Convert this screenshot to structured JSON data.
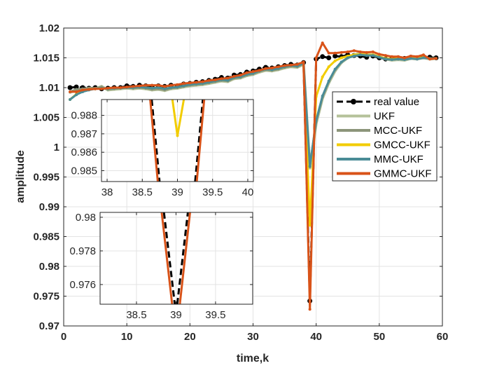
{
  "chart_data": {
    "type": "line",
    "xlabel": "time,k",
    "ylabel": "amplitude",
    "xlim": [
      0,
      60
    ],
    "ylim": [
      0.97,
      1.02
    ],
    "grid": true,
    "legend_position": "right-middle",
    "x_ticks": [
      "0",
      "10",
      "20",
      "30",
      "40",
      "50",
      "60"
    ],
    "x_tick_values": [
      0,
      10,
      20,
      30,
      40,
      50,
      60
    ],
    "y_ticks": [
      "0.97",
      "0.975",
      "0.98",
      "0.985",
      "0.99",
      "0.995",
      "1",
      "1.005",
      "1.01",
      "1.015",
      "1.02"
    ],
    "y_tick_values": [
      0.97,
      0.975,
      0.98,
      0.985,
      0.99,
      0.995,
      1,
      1.005,
      1.01,
      1.015,
      1.02
    ],
    "x": [
      1,
      2,
      3,
      4,
      5,
      6,
      7,
      8,
      9,
      10,
      11,
      12,
      13,
      14,
      15,
      16,
      17,
      18,
      19,
      20,
      21,
      22,
      23,
      24,
      25,
      26,
      27,
      28,
      29,
      30,
      31,
      32,
      33,
      34,
      35,
      36,
      37,
      38,
      39,
      40,
      41,
      42,
      43,
      44,
      45,
      46,
      47,
      48,
      49,
      50,
      51,
      52,
      53,
      54,
      55,
      56,
      57,
      58,
      59
    ],
    "series": [
      {
        "name": "real value",
        "color": "#000000",
        "dashed": true,
        "width": 3,
        "values": [
          1.01,
          1.0101,
          1.01,
          1.0099,
          1.01,
          1.0098,
          1.0099,
          1.01,
          1.01,
          1.0103,
          1.0102,
          1.0104,
          1.0103,
          1.0102,
          1.0103,
          1.0102,
          1.0104,
          1.0103,
          1.0106,
          1.0107,
          1.0109,
          1.011,
          1.0112,
          1.0114,
          1.0117,
          1.0116,
          1.0121,
          1.0122,
          1.0126,
          1.0128,
          1.0131,
          1.0134,
          1.0133,
          1.0135,
          1.0137,
          1.0139,
          1.0138,
          1.0142,
          0.9742,
          1.0148,
          1.0152,
          1.015,
          1.0153,
          1.0152,
          1.0155,
          1.0154,
          1.0153,
          1.0151,
          1.0153,
          1.015,
          1.0148,
          1.0149,
          1.015,
          1.0149,
          1.0151,
          1.015,
          1.0152,
          1.0151,
          1.015
        ]
      },
      {
        "name": "UKF",
        "color": "#b5c29a",
        "width": 4,
        "values": [
          1.0092,
          1.0096,
          1.0097,
          1.0099,
          1.0098,
          1.0102,
          1.0096,
          1.0097,
          1.0098,
          1.0099,
          1.0098,
          1.0099,
          1.0098,
          1.0096,
          1.0097,
          1.0095,
          1.0098,
          1.0099,
          1.0101,
          1.0103,
          1.0104,
          1.0105,
          1.0107,
          1.0109,
          1.0111,
          1.011,
          1.0115,
          1.0116,
          1.012,
          1.0122,
          1.0126,
          1.0129,
          1.0128,
          1.013,
          1.0133,
          1.0135,
          1.0134,
          1.0139,
          0.9965,
          1.004,
          1.0082,
          1.0108,
          1.0128,
          1.0142,
          1.015,
          1.0155,
          1.0157,
          1.0155,
          1.0155,
          1.0152,
          1.0148,
          1.0146,
          1.0147,
          1.0146,
          1.0149,
          1.0148,
          1.015,
          1.0148,
          1.0149
        ]
      },
      {
        "name": "MCC-UKF",
        "color": "#8c957a",
        "width": 3,
        "values": [
          1.0093,
          1.0097,
          1.0098,
          1.0099,
          1.0099,
          1.0101,
          1.0097,
          1.0098,
          1.0099,
          1.01,
          1.0099,
          1.01,
          1.0099,
          1.0097,
          1.0098,
          1.0096,
          1.0099,
          1.01,
          1.0102,
          1.0104,
          1.0105,
          1.0106,
          1.0108,
          1.011,
          1.0112,
          1.0111,
          1.0116,
          1.0117,
          1.0121,
          1.0123,
          1.0127,
          1.013,
          1.0129,
          1.0131,
          1.0134,
          1.0136,
          1.0135,
          1.014,
          0.9967,
          1.0043,
          1.0084,
          1.011,
          1.013,
          1.0143,
          1.015,
          1.0154,
          1.0156,
          1.0154,
          1.0154,
          1.0151,
          1.0148,
          1.0147,
          1.0148,
          1.0147,
          1.0149,
          1.0148,
          1.015,
          1.0149,
          1.0149
        ]
      },
      {
        "name": "GMCC-UKF",
        "color": "#f2cc00",
        "width": 3,
        "values": [
          1.008,
          1.0089,
          1.0094,
          1.0097,
          1.0098,
          1.0099,
          1.0098,
          1.0099,
          1.0099,
          1.01,
          1.01,
          1.0101,
          1.01,
          1.0099,
          1.01,
          1.0098,
          1.01,
          1.0101,
          1.0103,
          1.0105,
          1.0106,
          1.0107,
          1.0109,
          1.0111,
          1.0113,
          1.0112,
          1.0117,
          1.0118,
          1.0122,
          1.0124,
          1.0128,
          1.0131,
          1.013,
          1.0132,
          1.0135,
          1.0137,
          1.0136,
          1.0141,
          0.9869,
          1.0085,
          1.0118,
          1.0135,
          1.0145,
          1.015,
          1.0153,
          1.0155,
          1.0156,
          1.0155,
          1.0155,
          1.0152,
          1.0149,
          1.0148,
          1.0149,
          1.0148,
          1.015,
          1.0149,
          1.0151,
          1.0149,
          1.0149
        ]
      },
      {
        "name": "MMC-UKF",
        "color": "#4a8c96",
        "width": 3,
        "values": [
          1.008,
          1.0088,
          1.0093,
          1.0096,
          1.0098,
          1.0099,
          1.0098,
          1.0099,
          1.0099,
          1.01,
          1.01,
          1.0101,
          1.01,
          1.0099,
          1.01,
          1.0098,
          1.01,
          1.0101,
          1.0103,
          1.0105,
          1.0106,
          1.0107,
          1.0109,
          1.0111,
          1.0113,
          1.0112,
          1.0117,
          1.0118,
          1.0122,
          1.0124,
          1.0128,
          1.0131,
          1.013,
          1.0132,
          1.0135,
          1.0137,
          1.0136,
          1.0141,
          0.9968,
          1.0045,
          1.0086,
          1.0111,
          1.0131,
          1.0143,
          1.015,
          1.0153,
          1.0155,
          1.0154,
          1.0154,
          1.0151,
          1.0148,
          1.0147,
          1.0148,
          1.0147,
          1.0149,
          1.0148,
          1.015,
          1.0149,
          1.0149
        ]
      },
      {
        "name": "GMMC-UKF",
        "color": "#d95319",
        "width": 3,
        "values": [
          1.0093,
          1.0093,
          1.0096,
          1.0097,
          1.0098,
          1.0098,
          1.0099,
          1.01,
          1.01,
          1.0101,
          1.0102,
          1.0103,
          1.0104,
          1.0104,
          1.0104,
          1.0102,
          1.0104,
          1.0105,
          1.0107,
          1.0108,
          1.0109,
          1.011,
          1.0112,
          1.0113,
          1.0115,
          1.0116,
          1.0119,
          1.0121,
          1.0125,
          1.0127,
          1.0129,
          1.0132,
          1.0133,
          1.0135,
          1.0137,
          1.0138,
          1.0139,
          1.0143,
          0.9728,
          1.015,
          1.0175,
          1.0158,
          1.0158,
          1.0159,
          1.016,
          1.0162,
          1.016,
          1.0159,
          1.016,
          1.0156,
          1.0154,
          1.0152,
          1.0152,
          1.015,
          1.0153,
          1.0152,
          1.0155,
          1.0148,
          1.0149
        ]
      }
    ],
    "insets": [
      {
        "name": "upper-inset",
        "xlim": [
          37.92,
          40.08
        ],
        "ylim": [
          0.98441,
          0.98886
        ],
        "x_ticks": [
          "38",
          "38.5",
          "39",
          "39.5",
          "40"
        ],
        "x_tick_values": [
          38,
          38.5,
          39,
          39.5,
          40
        ],
        "y_ticks": [
          "0.985",
          "0.986",
          "0.987",
          "0.988"
        ],
        "y_tick_values": [
          0.985,
          0.986,
          0.987,
          0.988
        ]
      },
      {
        "name": "lower-inset",
        "xlim": [
          38.04,
          39.97
        ],
        "ylim": [
          0.97483,
          0.98029
        ],
        "x_ticks": [
          "38.5",
          "39",
          "39.5"
        ],
        "x_tick_values": [
          38.5,
          39,
          39.5
        ],
        "y_ticks": [
          "0.976",
          "0.978",
          "0.98"
        ],
        "y_tick_values": [
          0.976,
          0.978,
          0.98
        ]
      }
    ]
  }
}
